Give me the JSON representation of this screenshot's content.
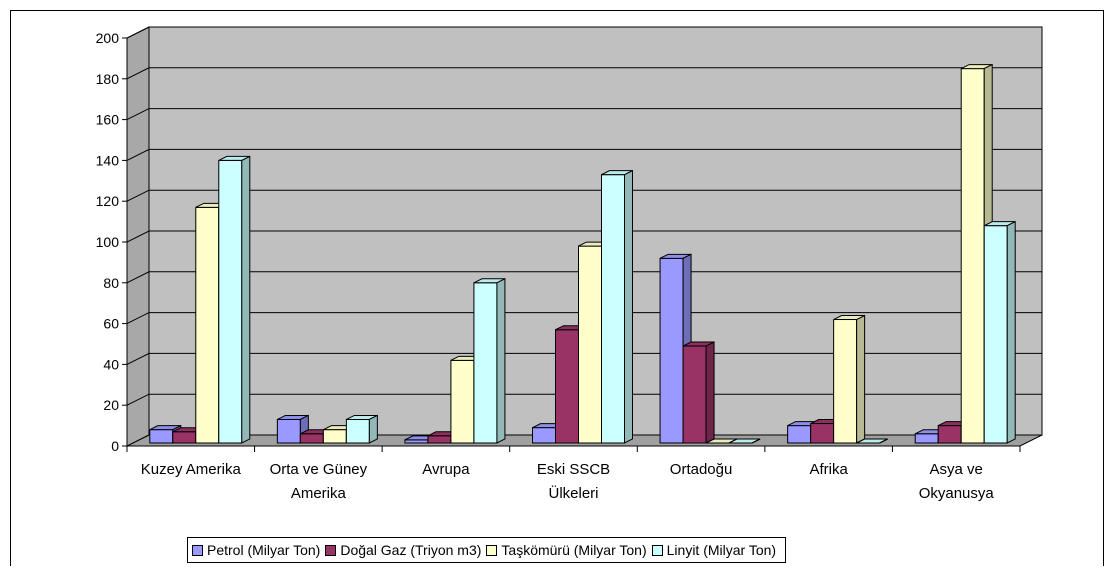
{
  "chart_data": {
    "type": "bar",
    "categories": [
      [
        "Kuzey Amerika"
      ],
      [
        "Orta ve Güney",
        "Amerika"
      ],
      [
        "Avrupa"
      ],
      [
        "Eski SSCB",
        "Ülkeleri"
      ],
      [
        "Ortadoğu"
      ],
      [
        "Afrika"
      ],
      [
        "Asya ve",
        "Okyanusya"
      ]
    ],
    "series": [
      {
        "name": "Petrol (Milyar Ton)",
        "color": "#9999FF",
        "values": [
          8,
          13,
          3,
          9,
          92,
          10,
          6
        ]
      },
      {
        "name": "Doğal Gaz (Triyon m3)",
        "color": "#993366",
        "values": [
          7,
          6,
          5,
          57,
          49,
          11,
          10
        ]
      },
      {
        "name": "Taşkömürü (Milyar Ton)",
        "color": "#FFFFCC",
        "values": [
          117,
          8,
          42,
          98,
          0,
          62,
          185
        ]
      },
      {
        "name": "Linyit (Milyar Ton)",
        "color": "#CCFFFF",
        "values": [
          140,
          13,
          80,
          133,
          0,
          0,
          108
        ]
      }
    ],
    "yticks": [
      0,
      20,
      40,
      60,
      80,
      100,
      120,
      140,
      160,
      180,
      200
    ],
    "ylim": [
      0,
      200
    ],
    "grid": true,
    "legend_position": "bottom",
    "plot_color": "#C0C0C0"
  }
}
